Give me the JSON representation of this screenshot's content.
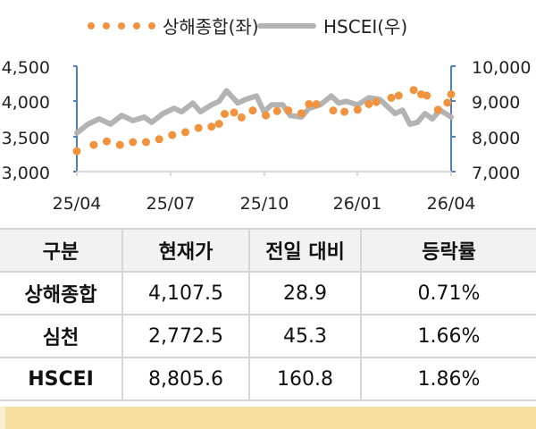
{
  "legend": {
    "series1_label": "상해종합(좌)",
    "series2_label": "HSCEI(우)"
  },
  "colors": {
    "shanghai": "#F0923E",
    "hscei": "#B3B3B3",
    "axis": "#4F7FBF",
    "table_header_bg": "#F2F2F2",
    "footer_strip": "#F7DFA1"
  },
  "chart_data": {
    "type": "line",
    "title": "",
    "x_tick_labels": [
      "25/04",
      "25/07",
      "25/10",
      "26/01",
      "26/04"
    ],
    "left_axis": {
      "ticks": [
        "4,500",
        "4,000",
        "3,500",
        "3,000"
      ],
      "ylim": [
        3000,
        4500
      ]
    },
    "right_axis": {
      "ticks": [
        "10,000",
        "9,000",
        "8,000",
        "7,000"
      ],
      "ylim": [
        7000,
        10000
      ]
    },
    "grid": false,
    "legend_position": "top",
    "series": [
      {
        "name": "상해종합(좌)",
        "axis": "left",
        "style": "dotted-markers",
        "x": [
          0,
          0.045,
          0.08,
          0.115,
          0.15,
          0.185,
          0.22,
          0.255,
          0.29,
          0.325,
          0.36,
          0.38,
          0.395,
          0.42,
          0.44,
          0.47,
          0.505,
          0.535,
          0.565,
          0.6,
          0.62,
          0.64,
          0.685,
          0.715,
          0.75,
          0.78,
          0.8,
          0.84,
          0.86,
          0.9,
          0.92,
          0.935,
          0.965,
          0.99,
          1.0
        ],
        "values": [
          3290,
          3380,
          3430,
          3380,
          3420,
          3420,
          3460,
          3520,
          3560,
          3620,
          3640,
          3680,
          3820,
          3840,
          3770,
          3870,
          3800,
          3860,
          3870,
          3830,
          3960,
          3960,
          3870,
          3850,
          3880,
          3960,
          3990,
          4050,
          4080,
          4160,
          4100,
          4080,
          3880,
          3980,
          4100
        ]
      },
      {
        "name": "HSCEI(우)",
        "axis": "right",
        "style": "line",
        "x": [
          0,
          0.03,
          0.06,
          0.09,
          0.12,
          0.15,
          0.18,
          0.2,
          0.23,
          0.26,
          0.28,
          0.31,
          0.33,
          0.36,
          0.38,
          0.4,
          0.43,
          0.45,
          0.48,
          0.5,
          0.52,
          0.55,
          0.57,
          0.6,
          0.62,
          0.65,
          0.68,
          0.7,
          0.72,
          0.75,
          0.78,
          0.81,
          0.83,
          0.85,
          0.87,
          0.89,
          0.91,
          0.93,
          0.95,
          0.97,
          1.0
        ],
        "values": [
          8100,
          8350,
          8500,
          8350,
          8600,
          8450,
          8550,
          8400,
          8650,
          8800,
          8700,
          8950,
          8700,
          8900,
          9000,
          9300,
          8950,
          9050,
          9150,
          8700,
          8900,
          8900,
          8600,
          8550,
          8800,
          8900,
          9150,
          8950,
          9000,
          8900,
          9100,
          9050,
          8850,
          8650,
          8750,
          8350,
          8400,
          8650,
          8500,
          8750,
          8550
        ]
      }
    ]
  },
  "table": {
    "headers": [
      "구분",
      "현재가",
      "전일 대비",
      "등락률"
    ],
    "rows": [
      {
        "name": "상해종합",
        "price": "4,107.5",
        "change": "28.9",
        "rate": "0.71%"
      },
      {
        "name": "심천",
        "price": "2,772.5",
        "change": "45.3",
        "rate": "1.66%"
      },
      {
        "name": "HSCEI",
        "price": "8,805.6",
        "change": "160.8",
        "rate": "1.86%"
      }
    ]
  }
}
